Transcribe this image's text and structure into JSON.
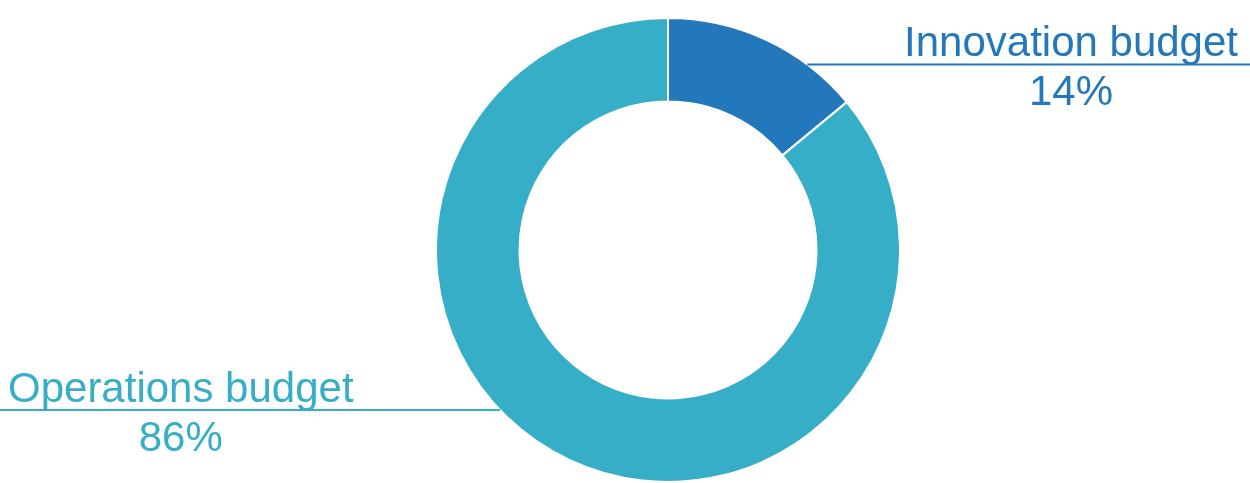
{
  "chart_data": {
    "type": "donut",
    "categories": [
      "Innovation budget",
      "Operations budget"
    ],
    "values": [
      14,
      86
    ],
    "colors": [
      "#2378bc",
      "#37aec8"
    ],
    "value_labels": [
      "14%",
      "86%"
    ],
    "legend": false
  }
}
